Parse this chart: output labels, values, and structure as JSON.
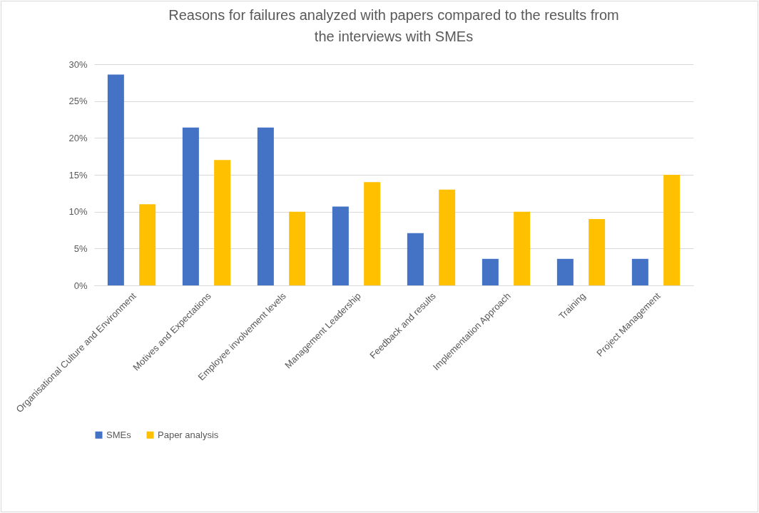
{
  "chart_data": {
    "type": "bar",
    "title": "Reasons for failures analyzed with papers compared to the results from the interviews with SMEs",
    "categories": [
      "Organisational Culture and Environment",
      "Motives and Expectations",
      "Employee involvement levels",
      "Management Leadership",
      "Feedback and results",
      "Implementation Approach",
      "Training",
      "Project Management"
    ],
    "series": [
      {
        "name": "SMEs",
        "color": "#4472c4",
        "values": [
          28.6,
          21.4,
          21.4,
          10.7,
          7.1,
          3.6,
          3.6,
          3.6
        ]
      },
      {
        "name": "Paper analysis",
        "color": "#ffc000",
        "values": [
          11,
          17,
          10,
          14,
          13,
          10,
          9,
          15
        ]
      }
    ],
    "ylim": [
      0,
      30
    ],
    "yticks": [
      {
        "value": 0,
        "label": "0%"
      },
      {
        "value": 5,
        "label": "5%"
      },
      {
        "value": 10,
        "label": "10%"
      },
      {
        "value": 15,
        "label": "15%"
      },
      {
        "value": 20,
        "label": "20%"
      },
      {
        "value": 25,
        "label": "25%"
      },
      {
        "value": 30,
        "label": "30%"
      }
    ],
    "grid": "y",
    "legend": "bottom"
  }
}
